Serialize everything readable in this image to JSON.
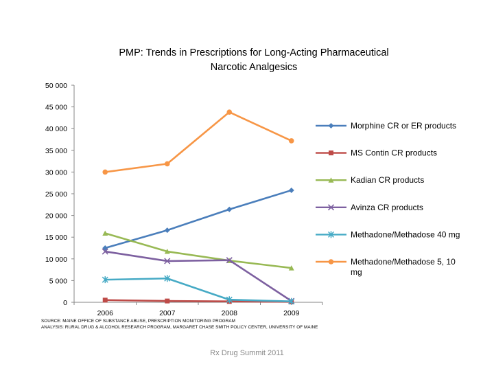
{
  "chart_data": {
    "type": "line",
    "title_lines": [
      "PMP: Trends in Prescriptions for Long-Acting Pharmaceutical",
      "Narcotic Analgesics"
    ],
    "categories": [
      "2006",
      "2007",
      "2008",
      "2009"
    ],
    "y_ticks": [
      "0",
      "5 000",
      "10 000",
      "15 000",
      "20 000",
      "25 000",
      "30 000",
      "35 000",
      "40 000",
      "45 000",
      "50 000"
    ],
    "ylim": [
      0,
      50000
    ],
    "grid": false,
    "legend_position": "right",
    "series": [
      {
        "name": "Morphine CR or ER products",
        "name_lines": [
          "Morphine CR or ER products"
        ],
        "values": [
          12500,
          16600,
          21400,
          25800
        ],
        "color": "#4a7ebb",
        "marker": "diamond"
      },
      {
        "name": "MS Contin CR products",
        "name_lines": [
          "MS Contin CR products"
        ],
        "values": [
          500,
          300,
          200,
          100
        ],
        "color": "#be4b48",
        "marker": "square"
      },
      {
        "name": "Kadian CR products",
        "name_lines": [
          "Kadian CR products"
        ],
        "values": [
          15900,
          11700,
          9600,
          7900
        ],
        "color": "#98b954",
        "marker": "triangle"
      },
      {
        "name": "Avinza CR products",
        "name_lines": [
          "Avinza CR products"
        ],
        "values": [
          11700,
          9500,
          9700,
          300
        ],
        "color": "#7d60a0",
        "marker": "x"
      },
      {
        "name": "Methadone/Methadose 40 mg",
        "name_lines": [
          "Methadone/Methadose 40 mg"
        ],
        "values": [
          5200,
          5500,
          600,
          200
        ],
        "color": "#46aac5",
        "marker": "star"
      },
      {
        "name": "Methadone/Methadose 5, 10 mg",
        "name_lines": [
          "Methadone/Methadose 5, 10",
          "mg"
        ],
        "values": [
          30000,
          31900,
          43800,
          37200
        ],
        "color": "#f79646",
        "marker": "circle"
      }
    ]
  },
  "source_lines": [
    "SOURCE: MAINE OFFICE OF SUBSTANCE ABUSE, PRESCRIPTION MONITORING PROGRAM",
    "ANALYSIS: RURAL DRUG & ALCOHOL RESEARCH PROGRAM, MARGARET CHASE SMITH POLICY CENTER, UNIVERSITY OF MAINE"
  ],
  "footer": "Rx Drug Summit 2011"
}
